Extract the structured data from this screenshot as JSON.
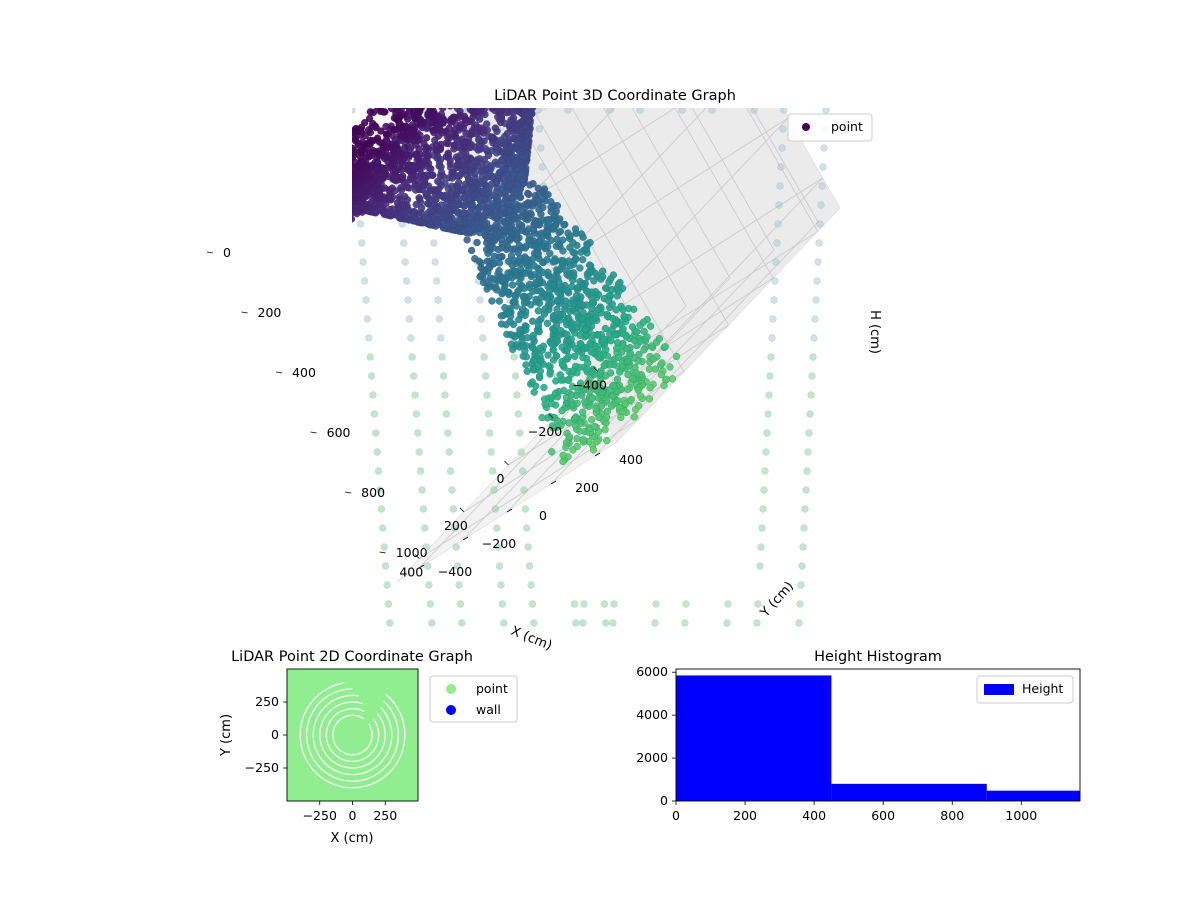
{
  "figure": {
    "background": "#ffffff"
  },
  "chart_data": [
    {
      "type": "scatter",
      "projection": "3d",
      "title": "LiDAR Point 3D Coordinate Graph",
      "xlabel": "X (cm)",
      "ylabel": "Y (cm)",
      "zlabel": "H (cm)",
      "xticks": [
        -400,
        -200,
        0,
        200,
        400
      ],
      "yticks": [
        -400,
        -200,
        0,
        200,
        400
      ],
      "zticks": [
        0,
        200,
        400,
        600,
        800,
        1000
      ],
      "xlim": [
        -500,
        500
      ],
      "ylim": [
        -500,
        500
      ],
      "zlim": [
        1100,
        0
      ],
      "z_inverted": true,
      "colormap": "viridis",
      "legend": {
        "entries": [
          "point"
        ],
        "placement": "top-right",
        "marker_color": "#440154"
      },
      "point_cloud": {
        "funnel": {
          "top_radius_cm": 430,
          "neck_radius_cm": 120,
          "neck_height_cm": 450,
          "bottom_radius_cm": 200,
          "bottom_height_cm": 1150
        },
        "background_wall_color": "#8fd19e"
      }
    },
    {
      "type": "scatter",
      "title": "LiDAR Point 2D Coordinate Graph",
      "xlabel": "X (cm)",
      "ylabel": "Y (cm)",
      "xticks": [
        -250,
        0,
        250
      ],
      "yticks": [
        -250,
        0,
        250
      ],
      "xlim": [
        -500,
        500
      ],
      "ylim": [
        -500,
        500
      ],
      "series": [
        {
          "name": "point",
          "color": "#90ee90"
        },
        {
          "name": "wall",
          "color": "#0000ff"
        }
      ],
      "legend": {
        "placement": "outside-right"
      },
      "rings_cm": [
        150,
        200,
        250,
        300,
        350,
        400
      ]
    },
    {
      "type": "bar",
      "title": "Height Histogram",
      "bins": [
        {
          "start": 0,
          "end": 450,
          "count": 5850
        },
        {
          "start": 450,
          "end": 900,
          "count": 800
        },
        {
          "start": 900,
          "end": 1170,
          "count": 480
        }
      ],
      "xticks": [
        0,
        200,
        400,
        600,
        800,
        1000
      ],
      "yticks": [
        0,
        2000,
        4000,
        6000
      ],
      "xlim": [
        0,
        1170
      ],
      "ylim": [
        0,
        6150
      ],
      "series": [
        {
          "name": "Height",
          "color": "#0000ff"
        }
      ],
      "legend": {
        "placement": "top-right"
      }
    }
  ]
}
